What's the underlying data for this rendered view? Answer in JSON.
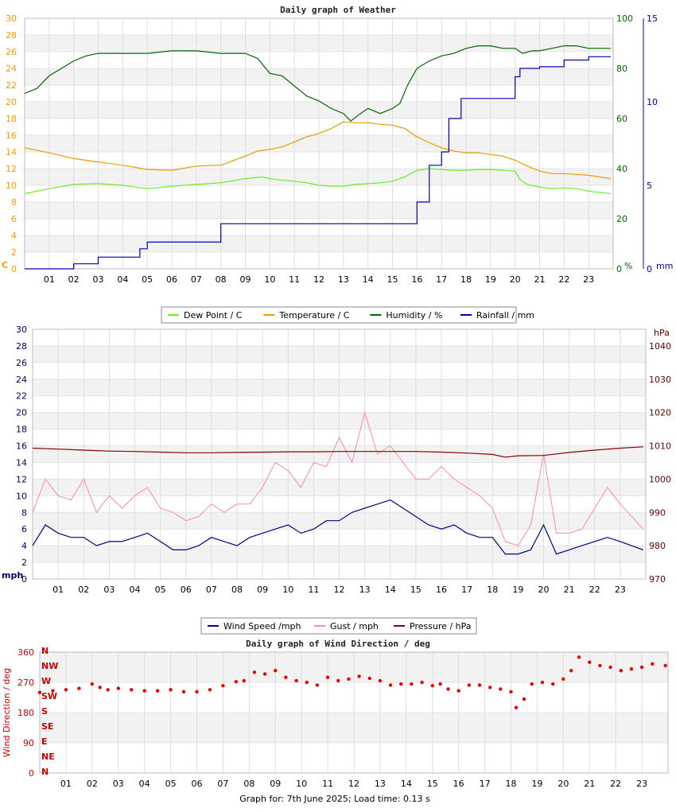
{
  "footer": "Graph for: 7th June 2025; Load time: 0.13 s",
  "hour_labels": [
    "01",
    "02",
    "03",
    "04",
    "05",
    "06",
    "07",
    "08",
    "09",
    "10",
    "11",
    "12",
    "13",
    "14",
    "15",
    "16",
    "17",
    "18",
    "19",
    "20",
    "21",
    "22",
    "23"
  ],
  "chart_data": [
    {
      "type": "line",
      "title": "Daily graph of Weather",
      "x_unit": "hour",
      "xlim": [
        0,
        24
      ],
      "axes": {
        "left": {
          "unit_label": "C",
          "ylim": [
            0,
            30
          ],
          "ticks": [
            0,
            2,
            4,
            6,
            8,
            10,
            12,
            14,
            16,
            18,
            20,
            22,
            24,
            26,
            28,
            30
          ],
          "color": "#ff9900"
        },
        "right1": {
          "unit_label": "%",
          "ylim": [
            0,
            100
          ],
          "ticks": [
            0,
            20,
            40,
            60,
            80,
            100
          ],
          "color": "#006600"
        },
        "right2": {
          "unit_label": "mm",
          "ylim": [
            0,
            15
          ],
          "ticks": [
            0,
            5,
            10,
            15
          ],
          "color": "#0000aa"
        }
      },
      "series": [
        {
          "name": "Dew Point / C",
          "axis": "left",
          "color": "#66ee22",
          "x": [
            0,
            1,
            2,
            3,
            4,
            5,
            6,
            7,
            8,
            9,
            9.7,
            10,
            10.5,
            11,
            11.5,
            12,
            12.5,
            13,
            13.5,
            14,
            14.5,
            15,
            15.5,
            16,
            16.5,
            17,
            17.5,
            18,
            18.5,
            19,
            19.5,
            20,
            20.2,
            20.5,
            21,
            21.5,
            22,
            22.5,
            23,
            23.9
          ],
          "y": [
            9.0,
            9.6,
            10.1,
            10.2,
            10.0,
            9.6,
            9.9,
            10.1,
            10.3,
            10.8,
            11.0,
            10.8,
            10.6,
            10.5,
            10.3,
            10.0,
            9.9,
            9.9,
            10.1,
            10.2,
            10.3,
            10.5,
            11.0,
            11.8,
            12.0,
            11.9,
            11.8,
            11.8,
            11.9,
            11.9,
            11.8,
            11.7,
            10.7,
            10.1,
            9.8,
            9.6,
            9.7,
            9.6,
            9.3,
            9.0
          ]
        },
        {
          "name": "Temperature / C",
          "axis": "left",
          "color": "#ee9900",
          "x": [
            0,
            1,
            2,
            3,
            4,
            5,
            6,
            7,
            8,
            9,
            9.5,
            10,
            10.5,
            11,
            11.5,
            12,
            12.5,
            13,
            13.5,
            14,
            14.5,
            15,
            15.5,
            16,
            16.5,
            17,
            17.5,
            18,
            18.5,
            19,
            19.5,
            20,
            20.5,
            21,
            21.5,
            22,
            22.5,
            23,
            23.9
          ],
          "y": [
            14.5,
            13.9,
            13.2,
            12.8,
            12.4,
            11.9,
            11.8,
            12.3,
            12.4,
            13.5,
            14.1,
            14.3,
            14.6,
            15.2,
            15.8,
            16.2,
            16.8,
            17.6,
            17.5,
            17.5,
            17.3,
            17.2,
            16.8,
            15.8,
            15.1,
            14.5,
            14.1,
            13.9,
            13.9,
            13.7,
            13.5,
            13.0,
            12.3,
            11.7,
            11.4,
            11.4,
            11.3,
            11.2,
            10.8
          ]
        },
        {
          "name": "Humidity / %",
          "axis": "right1",
          "color": "#006600",
          "x": [
            0,
            0.5,
            1,
            1.5,
            2,
            2.5,
            3,
            4,
            5,
            6,
            7,
            8,
            9,
            9.5,
            10,
            10.5,
            11,
            11.5,
            12,
            12.5,
            13,
            13.3,
            13.7,
            14,
            14.5,
            15,
            15.3,
            15.6,
            16,
            16.5,
            17,
            17.5,
            18,
            18.5,
            19,
            19.5,
            20,
            20.3,
            20.7,
            21,
            21.5,
            22,
            22.5,
            23,
            23.9
          ],
          "y": [
            70,
            72,
            77,
            80,
            83,
            85,
            86,
            86,
            86,
            87,
            87,
            86,
            86,
            84,
            78,
            77,
            73,
            69,
            67,
            64,
            62,
            59,
            62,
            64,
            62,
            64,
            66,
            73,
            80,
            83,
            85,
            86,
            88,
            89,
            89,
            88,
            88,
            86,
            87,
            87,
            88,
            89,
            89,
            88,
            88
          ]
        },
        {
          "name": "Rainfall / mm",
          "axis": "right2",
          "color": "#0000bb",
          "step": true,
          "x": [
            0,
            1.5,
            2,
            3,
            4,
            4.7,
            5,
            6,
            7.7,
            8,
            15,
            15.4,
            16,
            16.5,
            17,
            17.3,
            17.8,
            18.5,
            19,
            20,
            20.2,
            21,
            22,
            23,
            23.9
          ],
          "y": [
            0,
            0,
            0.3,
            0.7,
            0.7,
            1.2,
            1.6,
            1.6,
            1.6,
            2.7,
            2.7,
            2.7,
            4.0,
            6.2,
            7.0,
            9.0,
            10.2,
            10.2,
            10.2,
            11.5,
            12.0,
            12.1,
            12.5,
            12.7,
            12.7
          ]
        }
      ],
      "legend": {
        "placement": "bottom",
        "entries": [
          "Dew Point / C",
          "Temperature / C",
          "Humidity / %",
          "Rainfall / mm"
        ]
      },
      "grid": true
    },
    {
      "type": "line",
      "title": "",
      "x_unit": "hour",
      "xlim": [
        0,
        24
      ],
      "axes": {
        "left": {
          "unit_label": "mph",
          "ylim": [
            0,
            30
          ],
          "ticks": [
            0,
            2,
            4,
            6,
            8,
            10,
            12,
            14,
            16,
            18,
            20,
            22,
            24,
            26,
            28,
            30
          ],
          "color": "#000066"
        },
        "right": {
          "unit_label": "hPa",
          "ylim": [
            970,
            1045
          ],
          "ticks": [
            970,
            980,
            990,
            1000,
            1010,
            1020,
            1030,
            1040
          ],
          "color": "#660000"
        }
      },
      "series": [
        {
          "name": "Wind Speed /mph",
          "axis": "left",
          "color": "#000088",
          "x": [
            0,
            0.5,
            1,
            1.5,
            2,
            2.5,
            3,
            3.5,
            4,
            4.5,
            5,
            5.5,
            6,
            6.5,
            7,
            7.5,
            8,
            8.5,
            9,
            9.5,
            10,
            10.5,
            11,
            11.5,
            12,
            12.5,
            13,
            13.5,
            14,
            14.5,
            15,
            15.5,
            16,
            16.5,
            17,
            17.5,
            18,
            18.5,
            19,
            19.5,
            20,
            20.5,
            21,
            21.5,
            22,
            22.5,
            23,
            23.9
          ],
          "y": [
            4.0,
            6.5,
            5.5,
            5.0,
            5.0,
            4.0,
            4.5,
            4.5,
            5.0,
            5.5,
            4.5,
            3.5,
            3.5,
            4.0,
            5.0,
            4.5,
            4.0,
            5.0,
            5.5,
            6.0,
            6.5,
            5.5,
            6.0,
            7.0,
            7.0,
            8.0,
            8.5,
            9.0,
            9.5,
            8.5,
            7.5,
            6.5,
            6.0,
            6.5,
            5.5,
            5.0,
            5.0,
            3.0,
            3.0,
            3.5,
            6.5,
            3.0,
            3.5,
            4.0,
            4.5,
            5.0,
            4.5,
            3.5
          ]
        },
        {
          "name": "Gust / mph",
          "axis": "left",
          "color": "#ff88aa",
          "x": [
            0,
            0.5,
            1,
            1.5,
            2,
            2.5,
            3,
            3.5,
            4,
            4.5,
            5,
            5.5,
            6,
            6.5,
            7,
            7.5,
            8,
            8.5,
            9,
            9.5,
            10,
            10.5,
            11,
            11.5,
            12,
            12.5,
            13,
            13.5,
            14,
            14.5,
            15,
            15.5,
            16,
            16.5,
            17,
            17.5,
            18,
            18.5,
            19,
            19.5,
            20,
            20.5,
            21,
            21.5,
            22,
            22.5,
            23,
            23.9
          ],
          "y": [
            8.0,
            12.0,
            10.0,
            9.5,
            12.0,
            8.0,
            10.0,
            8.5,
            10.0,
            11.0,
            8.5,
            8.0,
            7.0,
            7.5,
            9.0,
            8.0,
            9.0,
            9.0,
            11.0,
            14.0,
            13.0,
            11.0,
            14.0,
            13.5,
            17.0,
            14.0,
            20.0,
            15.0,
            16.0,
            14.0,
            12.0,
            12.0,
            13.5,
            12.0,
            11.0,
            10.0,
            8.5,
            4.5,
            4.0,
            6.5,
            15.0,
            5.5,
            5.5,
            6.0,
            8.5,
            11.0,
            9.0,
            6.0
          ]
        },
        {
          "name": "Pressure / hPa",
          "axis": "right",
          "color": "#880000",
          "x": [
            0,
            1,
            2,
            3,
            4,
            5,
            6,
            7,
            8,
            9,
            10,
            11,
            12,
            13,
            14,
            15,
            16,
            17,
            18,
            18.5,
            19,
            20,
            21,
            22,
            23,
            23.9
          ],
          "y": [
            1009.3,
            1009.0,
            1008.7,
            1008.4,
            1008.3,
            1008.1,
            1007.9,
            1007.9,
            1008.0,
            1008.1,
            1008.2,
            1008.2,
            1008.3,
            1008.3,
            1008.3,
            1008.3,
            1008.1,
            1007.8,
            1007.4,
            1006.6,
            1007.0,
            1007.1,
            1008.0,
            1008.7,
            1009.3,
            1009.7
          ]
        }
      ],
      "legend": {
        "placement": "bottom",
        "entries": [
          "Wind Speed /mph",
          "Gust / mph",
          "Pressure / hPa"
        ]
      },
      "grid": true
    },
    {
      "type": "scatter",
      "title": "Daily graph of Wind Direction / deg",
      "x_unit": "hour",
      "xlim": [
        0,
        24
      ],
      "ylabel": "Wind Direction / deg",
      "axes": {
        "left": {
          "ylim": [
            0,
            360
          ],
          "ticks": [
            0,
            90,
            180,
            270,
            360
          ],
          "color": "#cc0000"
        },
        "compass": [
          "N",
          "NE",
          "E",
          "SE",
          "S",
          "SW",
          "W",
          "NW",
          "N"
        ]
      },
      "series": [
        {
          "name": "",
          "color": "#ee0000",
          "x": [
            0,
            0.5,
            1,
            1.5,
            2,
            2.3,
            2.6,
            3,
            3.5,
            4,
            4.5,
            5,
            5.5,
            6,
            6.5,
            7,
            7.5,
            7.8,
            8.2,
            8.6,
            9,
            9.4,
            9.8,
            10.2,
            10.6,
            11,
            11.4,
            11.8,
            12.2,
            12.6,
            13,
            13.4,
            13.8,
            14.2,
            14.6,
            15,
            15.3,
            15.6,
            16,
            16.4,
            16.8,
            17.2,
            17.6,
            18,
            18.2,
            18.5,
            18.8,
            19.2,
            19.6,
            20,
            20.3,
            20.6,
            21,
            21.4,
            21.8,
            22.2,
            22.6,
            23,
            23.4,
            23.9
          ],
          "y": [
            240,
            245,
            248,
            252,
            265,
            255,
            248,
            252,
            248,
            245,
            245,
            248,
            242,
            242,
            248,
            260,
            272,
            275,
            300,
            295,
            305,
            285,
            275,
            270,
            262,
            285,
            275,
            280,
            288,
            282,
            275,
            262,
            265,
            265,
            270,
            260,
            265,
            250,
            245,
            262,
            262,
            255,
            250,
            242,
            195,
            220,
            265,
            270,
            265,
            280,
            305,
            345,
            330,
            320,
            315,
            305,
            310,
            315,
            325,
            320
          ]
        }
      ],
      "grid": true
    }
  ]
}
